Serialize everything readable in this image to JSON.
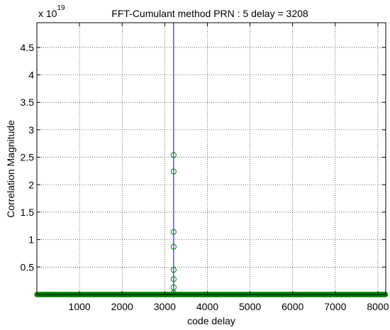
{
  "chart_data": {
    "type": "scatter",
    "title": "FFT-Cumulant method PRN : 5 delay = 3208",
    "xlabel": "code delay",
    "ylabel": "Correlation Magnitude",
    "y_multiplier": {
      "base": "x 10",
      "exponent": "19"
    },
    "xlim": [
      0,
      8184
    ],
    "ylim": [
      0,
      4.95
    ],
    "grid": true,
    "x_ticks": [
      1000,
      2000,
      3000,
      4000,
      5000,
      6000,
      7000,
      8000
    ],
    "y_ticks": [
      0.5,
      1,
      1.5,
      2,
      2.5,
      3,
      3.5,
      4,
      4.5
    ],
    "y_tick_labels": [
      "0.5",
      "1",
      "1.5",
      "2",
      "2.5",
      "3",
      "3.5",
      "4",
      "4.5"
    ],
    "peak_line": {
      "x": 3208,
      "color": "#0000ff"
    },
    "series": [
      {
        "marker": "circle",
        "color": "#008000",
        "points": [
          {
            "x": 3208,
            "y": 2.54
          },
          {
            "x": 3208,
            "y": 2.24
          },
          {
            "x": 3208,
            "y": 1.14
          },
          {
            "x": 3208,
            "y": 0.87
          },
          {
            "x": 3208,
            "y": 0.45
          },
          {
            "x": 3208,
            "y": 0.28
          },
          {
            "x": 3208,
            "y": 0.13
          },
          {
            "x": 3208,
            "y": 0.03
          }
        ],
        "baseline": {
          "x_start": 0,
          "x_end": 8184,
          "y": 0
        }
      }
    ]
  }
}
